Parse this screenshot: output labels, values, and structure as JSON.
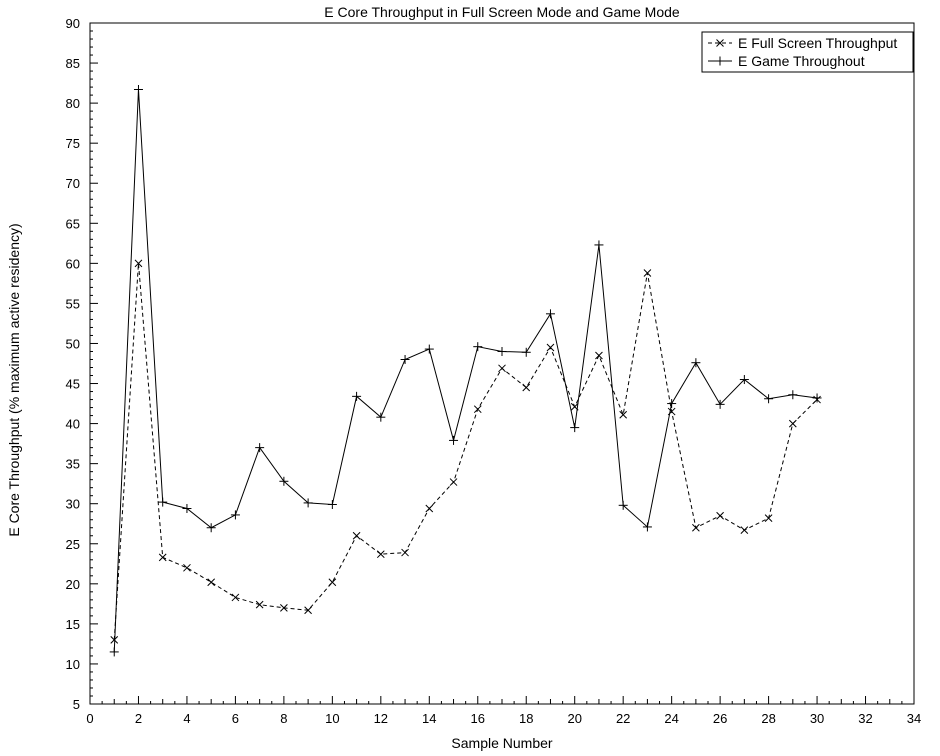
{
  "chart_data": {
    "type": "line",
    "title": "E Core Throughput in Full Screen Mode and Game Mode",
    "xlabel": "Sample Number",
    "ylabel": "E Core Throughput (% maximum active residency)",
    "xlim": [
      0,
      34
    ],
    "ylim": [
      5,
      90
    ],
    "x_ticks": [
      0,
      2,
      4,
      6,
      8,
      10,
      12,
      14,
      16,
      18,
      20,
      22,
      24,
      26,
      28,
      30,
      32,
      34
    ],
    "y_ticks": [
      5,
      10,
      15,
      20,
      25,
      30,
      35,
      40,
      45,
      50,
      55,
      60,
      65,
      70,
      75,
      80,
      85,
      90
    ],
    "grid": false,
    "legend_position": "top-right",
    "x": [
      1,
      2,
      3,
      4,
      5,
      6,
      7,
      8,
      9,
      10,
      11,
      12,
      13,
      14,
      15,
      16,
      17,
      18,
      19,
      20,
      21,
      22,
      23,
      24,
      25,
      26,
      27,
      28,
      29,
      30
    ],
    "series": [
      {
        "name": "E Full Screen Throughput",
        "line_style": "dashed",
        "marker": "x",
        "values": [
          13.0,
          60.0,
          23.3,
          22.0,
          20.2,
          18.3,
          17.4,
          17.0,
          16.7,
          20.2,
          26.0,
          23.7,
          23.9,
          29.4,
          32.7,
          41.8,
          46.9,
          44.5,
          49.5,
          42.1,
          48.5,
          41.1,
          58.8,
          41.5,
          27.0,
          28.5,
          26.7,
          28.2,
          40.0,
          43.0
        ]
      },
      {
        "name": "E Game Throughout",
        "line_style": "solid",
        "marker": "+",
        "values": [
          11.5,
          81.7,
          30.2,
          29.4,
          27.0,
          28.6,
          37.0,
          32.8,
          30.1,
          29.9,
          43.4,
          40.8,
          48.0,
          49.3,
          37.9,
          49.6,
          49.0,
          48.9,
          53.7,
          39.5,
          62.3,
          29.8,
          27.1,
          42.5,
          47.6,
          42.4,
          45.5,
          43.1,
          43.6,
          43.2
        ]
      }
    ]
  }
}
